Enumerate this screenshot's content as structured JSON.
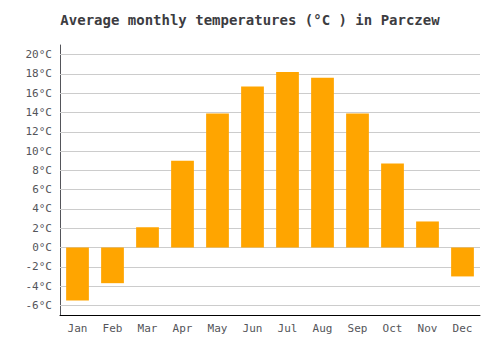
{
  "chart_data": {
    "type": "bar",
    "title": "Average monthly temperatures (°C ) in Parczew",
    "categories": [
      "Jan",
      "Feb",
      "Mar",
      "Apr",
      "May",
      "Jun",
      "Jul",
      "Aug",
      "Sep",
      "Oct",
      "Nov",
      "Dec"
    ],
    "values": [
      -5.5,
      -3.7,
      2.1,
      9.0,
      13.9,
      16.7,
      18.2,
      17.6,
      13.9,
      8.7,
      2.7,
      -3.0
    ],
    "color": "#FFA500",
    "ylim": [
      -7,
      21
    ],
    "yticks": [
      {
        "value": -6,
        "label": "-6°C"
      },
      {
        "value": -4,
        "label": "-4°C"
      },
      {
        "value": -2,
        "label": "-2°C"
      },
      {
        "value": 0,
        "label": "0°C"
      },
      {
        "value": 2,
        "label": "2°C"
      },
      {
        "value": 4,
        "label": "4°C"
      },
      {
        "value": 6,
        "label": "6°C"
      },
      {
        "value": 8,
        "label": "8°C"
      },
      {
        "value": 10,
        "label": "10°C"
      },
      {
        "value": 12,
        "label": "12°C"
      },
      {
        "value": 14,
        "label": "14°C"
      },
      {
        "value": 16,
        "label": "16°C"
      },
      {
        "value": 18,
        "label": "18°C"
      },
      {
        "value": 20,
        "label": "20°C"
      }
    ],
    "grid": true
  }
}
